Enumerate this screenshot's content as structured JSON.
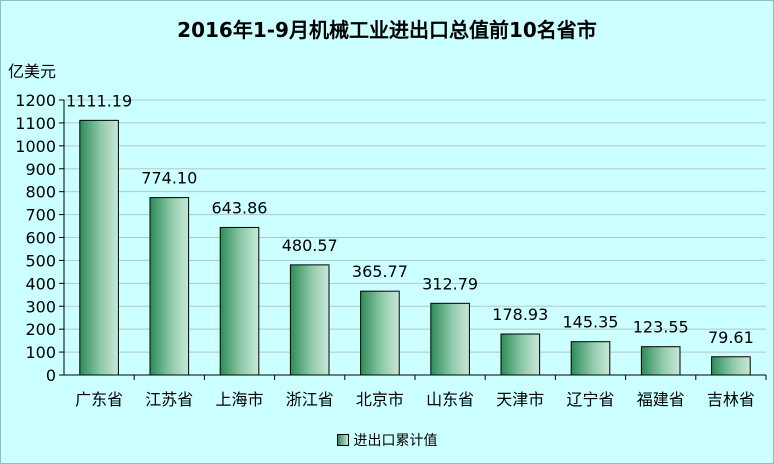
{
  "chart_data": {
    "type": "bar",
    "title": "2016年1-9月机械工业进出口总值前10名省市",
    "ylabel": "亿美元",
    "xlabel": "",
    "categories": [
      "广东省",
      "江苏省",
      "上海市",
      "浙江省",
      "北京市",
      "山东省",
      "天津市",
      "辽宁省",
      "福建省",
      "吉林省"
    ],
    "series": [
      {
        "name": "进出口累计值",
        "values": [
          1111.19,
          774.1,
          643.86,
          480.57,
          365.77,
          312.79,
          178.93,
          145.35,
          123.55,
          79.61
        ],
        "labels": [
          "1111.19",
          "774.10",
          "643.86",
          "480.57",
          "365.77",
          "312.79",
          "178.93",
          "145.35",
          "123.55",
          "79.61"
        ]
      }
    ],
    "ylim": [
      0,
      1200
    ],
    "yticks": [
      0,
      100,
      200,
      300,
      400,
      500,
      600,
      700,
      800,
      900,
      1000,
      1100,
      1200
    ],
    "grid": true,
    "legend": "bottom",
    "colors": {
      "background": "#ccffff",
      "bar_dark": "#2e8b57",
      "bar_light": "#c8e8d8",
      "grid": "#b0c8c8"
    }
  }
}
